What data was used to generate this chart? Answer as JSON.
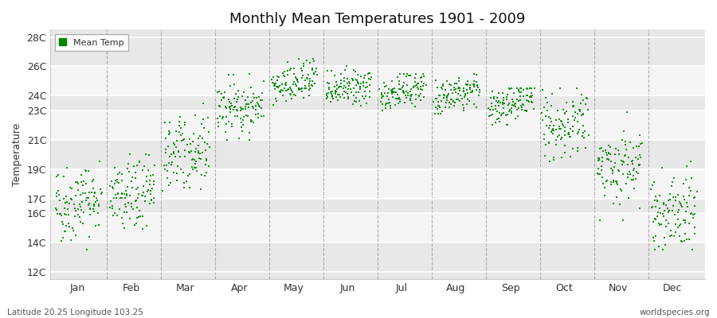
{
  "title": "Monthly Mean Temperatures 1901 - 2009",
  "ylabel": "Temperature",
  "xlabel_labels": [
    "Jan",
    "Feb",
    "Mar",
    "Apr",
    "May",
    "Jun",
    "Jul",
    "Aug",
    "Sep",
    "Oct",
    "Nov",
    "Dec"
  ],
  "legend_label": "Mean Temp",
  "yticks": [
    12,
    14,
    16,
    17,
    19,
    21,
    23,
    24,
    26,
    28
  ],
  "ytick_labels": [
    "12C",
    "14C",
    "16C",
    "17C",
    "19C",
    "21C",
    "23C",
    "24C",
    "26C",
    "28C"
  ],
  "ylim": [
    11.5,
    28.5
  ],
  "dot_color": "#008800",
  "bg_color": "#e8e8e8",
  "plot_bg_color": "#e8e8e8",
  "footer_left": "Latitude 20.25 Longitude 103.25",
  "footer_right": "worldspecies.org",
  "monthly_mean": [
    16.8,
    17.2,
    20.2,
    23.2,
    24.8,
    24.5,
    24.3,
    24.1,
    23.5,
    22.0,
    19.2,
    16.2
  ],
  "monthly_std": [
    1.3,
    1.2,
    1.2,
    0.9,
    0.7,
    0.6,
    0.6,
    0.6,
    0.7,
    1.0,
    1.3,
    1.4
  ],
  "monthly_range_min": [
    12.5,
    14.5,
    17.5,
    21.0,
    23.2,
    23.2,
    22.8,
    22.8,
    22.0,
    19.5,
    15.5,
    13.5
  ],
  "monthly_range_max": [
    19.5,
    20.0,
    23.5,
    25.5,
    26.5,
    26.0,
    25.5,
    25.5,
    24.5,
    24.5,
    23.5,
    19.5
  ],
  "n_years": 109,
  "seed": 42
}
